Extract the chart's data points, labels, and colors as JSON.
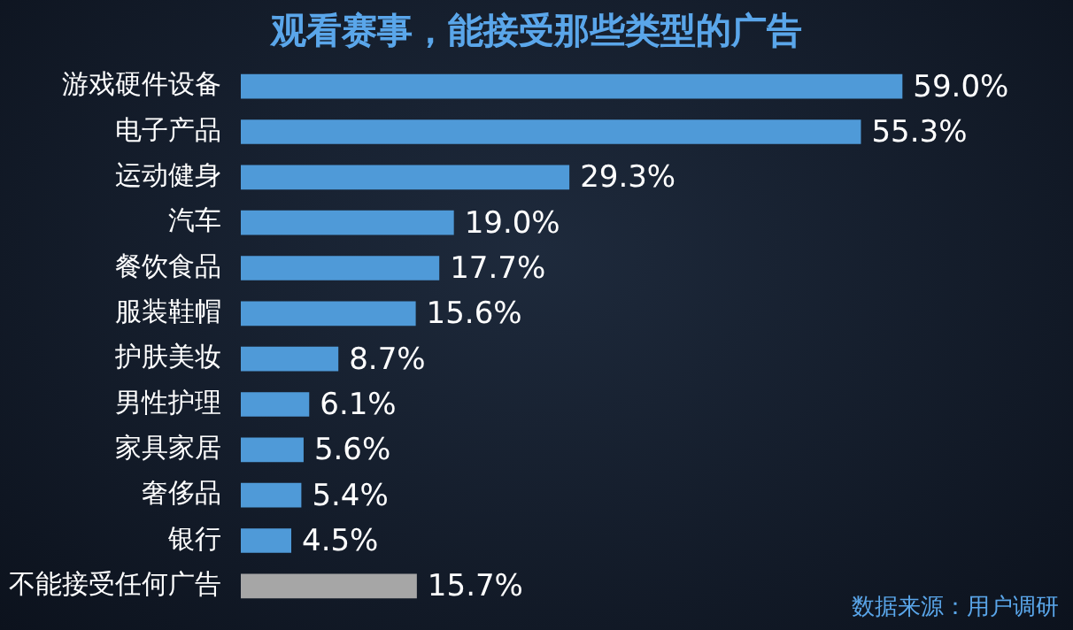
{
  "chart_data": {
    "type": "bar",
    "orientation": "horizontal",
    "title": "观看赛事，能接受那些类型的广告",
    "categories": [
      "游戏硬件设备",
      "电子产品",
      "运动健身",
      "汽车",
      "餐饮食品",
      "服装鞋帽",
      "护肤美妆",
      "男性护理",
      "家具家居",
      "奢侈品",
      "银行",
      "不能接受任何广告"
    ],
    "values": [
      59.0,
      55.3,
      29.3,
      19.0,
      17.7,
      15.6,
      8.7,
      6.1,
      5.6,
      5.4,
      4.5,
      15.7
    ],
    "colors": [
      "#4f9ad8",
      "#4f9ad8",
      "#4f9ad8",
      "#4f9ad8",
      "#4f9ad8",
      "#4f9ad8",
      "#4f9ad8",
      "#4f9ad8",
      "#4f9ad8",
      "#4f9ad8",
      "#4f9ad8",
      "#a6a6a6"
    ],
    "value_labels": [
      "59.0%",
      "55.3%",
      "29.3%",
      "19.0%",
      "17.7%",
      "15.6%",
      "8.7%",
      "6.1%",
      "5.6%",
      "5.4%",
      "4.5%",
      "15.7%"
    ],
    "legend": false,
    "annotations": [
      "数据来源：用户调研"
    ]
  }
}
